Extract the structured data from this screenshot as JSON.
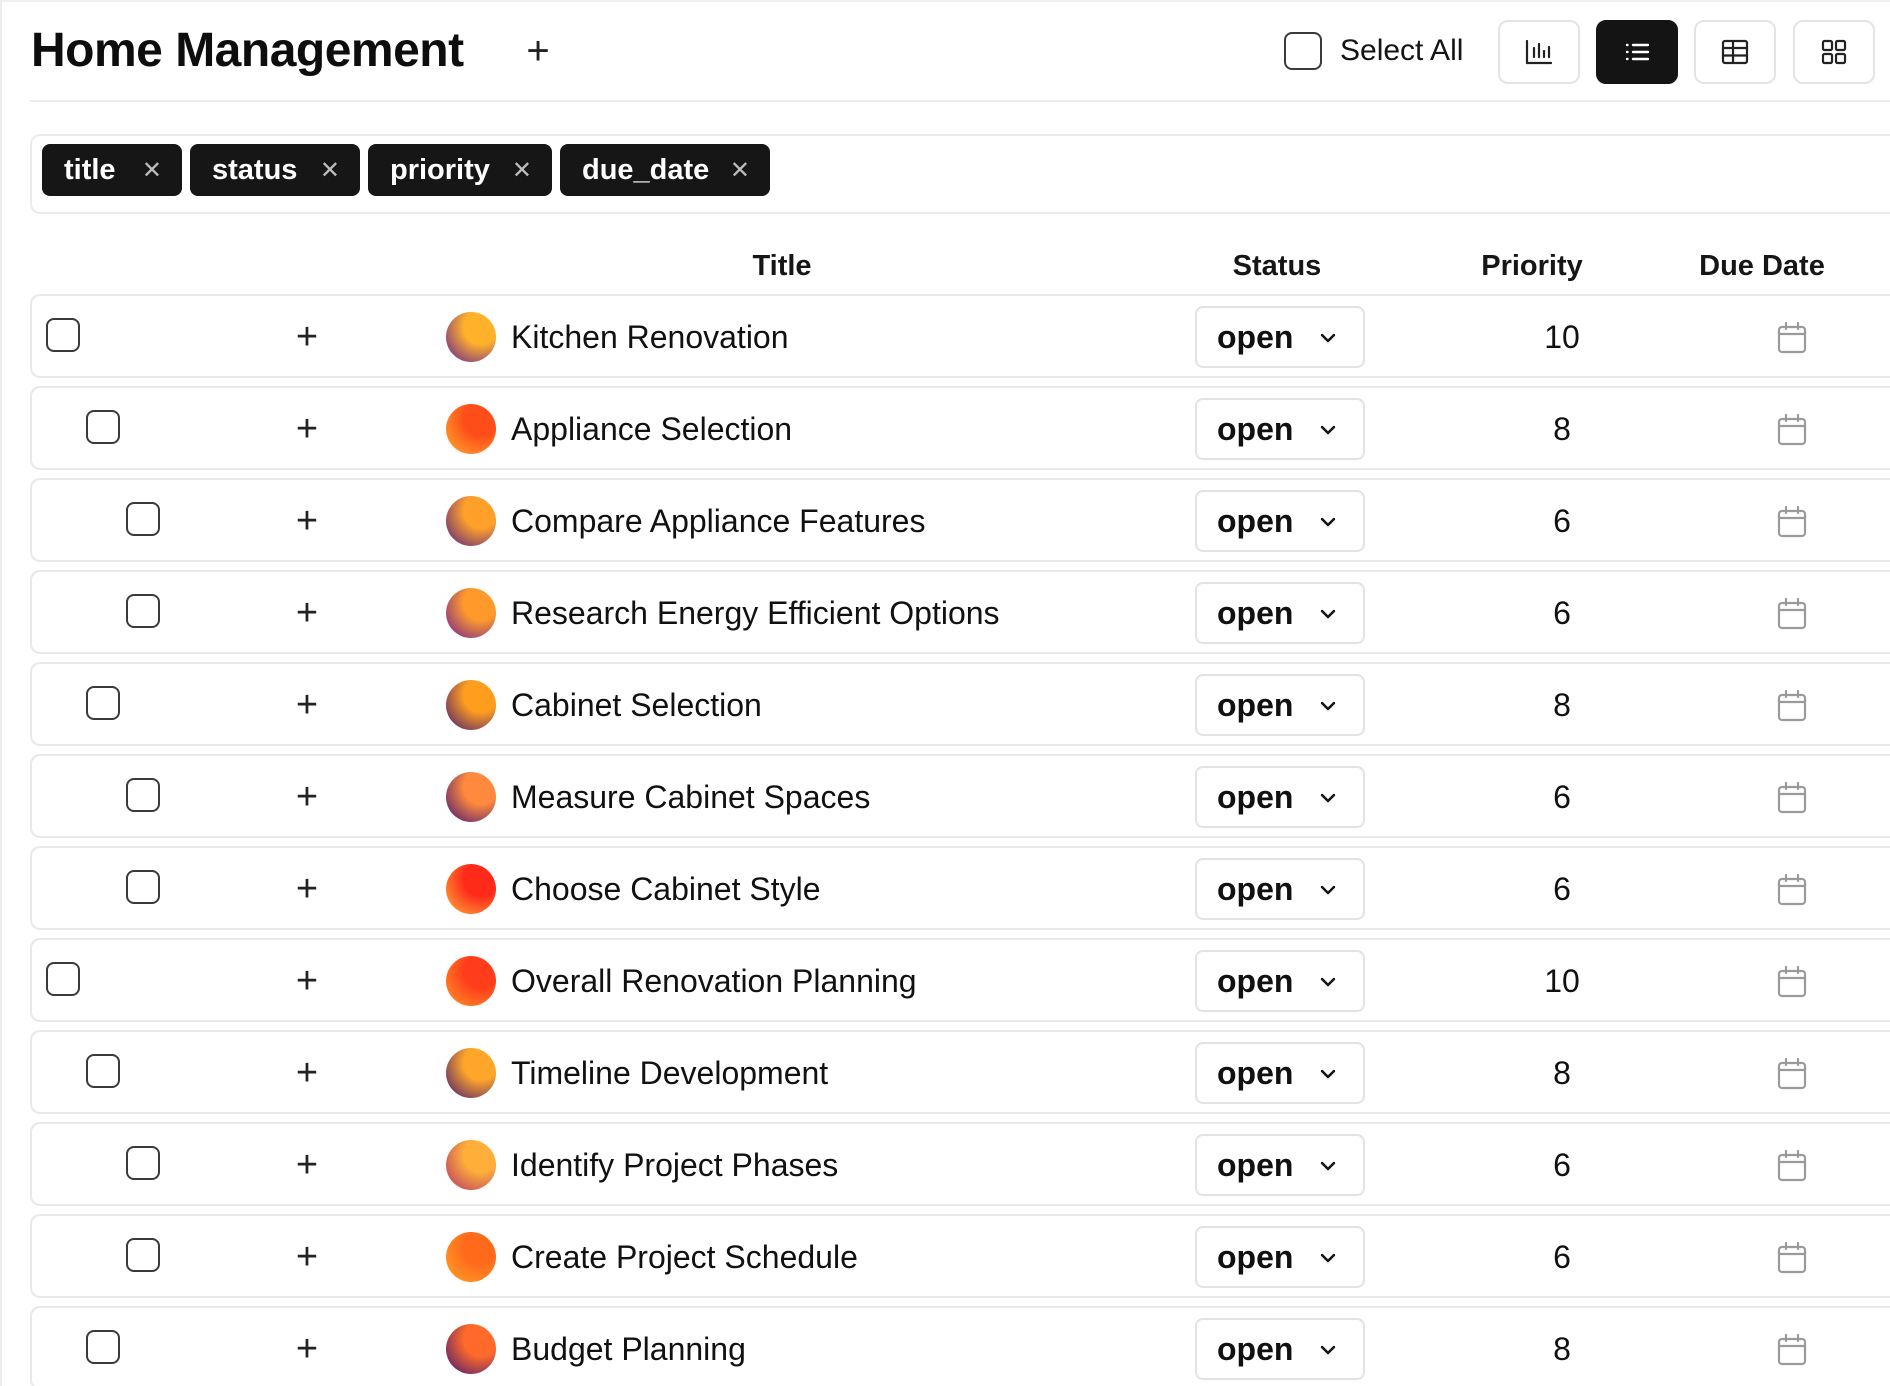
{
  "header": {
    "title": "Home Management",
    "add_icon": "plus-icon",
    "select_all_label": "Select All",
    "views": [
      {
        "name": "chart-view",
        "icon": "bar-chart-icon",
        "active": false
      },
      {
        "name": "list-view",
        "icon": "list-icon",
        "active": true
      },
      {
        "name": "table-view",
        "icon": "table-icon",
        "active": false
      },
      {
        "name": "grid-view",
        "icon": "grid-icon",
        "active": false
      }
    ]
  },
  "filters": {
    "chips": [
      {
        "label": "title",
        "remove_icon": "close-icon"
      },
      {
        "label": "status",
        "remove_icon": "close-icon"
      },
      {
        "label": "priority",
        "remove_icon": "close-icon"
      },
      {
        "label": "due_date",
        "remove_icon": "close-icon"
      }
    ]
  },
  "columns": {
    "title": "Title",
    "status": "Status",
    "priority": "Priority",
    "due_date": "Due Date"
  },
  "rows": [
    {
      "title": "Kitchen Renovation",
      "status": "open",
      "priority": "10",
      "level": 0,
      "colors": [
        "#ffb12a",
        "#5a189a"
      ]
    },
    {
      "title": "Appliance Selection",
      "status": "open",
      "priority": "8",
      "level": 1,
      "colors": [
        "#ff4d1a",
        "#ffb02e"
      ]
    },
    {
      "title": "Compare Appliance Features",
      "status": "open",
      "priority": "6",
      "level": 2,
      "colors": [
        "#ffa02a",
        "#4b1a8a"
      ]
    },
    {
      "title": "Research Energy Efficient Options",
      "status": "open",
      "priority": "6",
      "level": 2,
      "colors": [
        "#ff9a2a",
        "#6a1b9a"
      ]
    },
    {
      "title": "Cabinet Selection",
      "status": "open",
      "priority": "8",
      "level": 1,
      "colors": [
        "#ff9d1f",
        "#3d1475"
      ]
    },
    {
      "title": "Measure Cabinet Spaces",
      "status": "open",
      "priority": "6",
      "level": 2,
      "colors": [
        "#ff8a3d",
        "#3a0f7a"
      ]
    },
    {
      "title": "Choose Cabinet Style",
      "status": "open",
      "priority": "6",
      "level": 2,
      "colors": [
        "#ff2a1a",
        "#ffb43a"
      ]
    },
    {
      "title": "Overall Renovation Planning",
      "status": "open",
      "priority": "10",
      "level": 0,
      "colors": [
        "#ff3d1a",
        "#ff9a2a"
      ]
    },
    {
      "title": "Timeline Development",
      "status": "open",
      "priority": "8",
      "level": 1,
      "colors": [
        "#ffa52a",
        "#3a1275"
      ]
    },
    {
      "title": "Identify Project Phases",
      "status": "open",
      "priority": "6",
      "level": 2,
      "colors": [
        "#ffae3a",
        "#b0306a"
      ]
    },
    {
      "title": "Create Project Schedule",
      "status": "open",
      "priority": "6",
      "level": 2,
      "colors": [
        "#ff6a1a",
        "#ffa52a"
      ]
    },
    {
      "title": "Budget Planning",
      "status": "open",
      "priority": "8",
      "level": 1,
      "colors": [
        "#ff6a2a",
        "#3a127a"
      ]
    }
  ],
  "icons": {
    "row_add": "plus-icon",
    "status_dropdown": "chevron-down-icon",
    "due_date": "calendar-icon"
  }
}
